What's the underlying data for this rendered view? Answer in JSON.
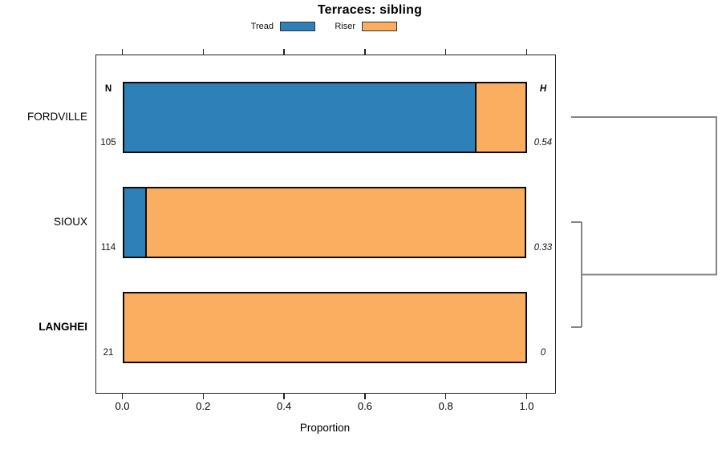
{
  "chart_data": {
    "type": "bar",
    "orientation": "horizontal-stacked",
    "title": "Terraces: sibling",
    "xlabel": "Proportion",
    "xlim": [
      0,
      1
    ],
    "x_tick_labels": [
      "0.0",
      "0.2",
      "0.4",
      "0.6",
      "0.8",
      "1.0"
    ],
    "x_tick_values": [
      0,
      0.2,
      0.4,
      0.6,
      0.8,
      1.0
    ],
    "grid": false,
    "legend": {
      "position": "top",
      "entries": [
        {
          "key": "tread",
          "label": "Tread",
          "color": "#2E80B8"
        },
        {
          "key": "riser",
          "label": "Riser",
          "color": "#FBAD60"
        }
      ]
    },
    "columns": {
      "n_header": "N",
      "h_header": "H"
    },
    "series_order": [
      "tread",
      "riser"
    ],
    "rows": [
      {
        "label": "FORDVILLE",
        "bold": false,
        "n": "105",
        "h": "0.54",
        "values": {
          "tread": 0.875,
          "riser": 0.125
        }
      },
      {
        "label": "SIOUX",
        "bold": false,
        "n": "114",
        "h": "0.33",
        "values": {
          "tread": 0.061,
          "riser": 0.939
        }
      },
      {
        "label": "LANGHEI",
        "bold": true,
        "n": "21",
        "h": "0",
        "values": {
          "tread": 0,
          "riser": 1.0
        }
      }
    ],
    "dendrogram": {
      "line_color": "#848484",
      "merges": [
        {
          "members": [
            "SIOUX",
            "LANGHEI"
          ],
          "h": 0.33
        },
        {
          "members": [
            "FORDVILLE",
            "SIOUX+LANGHEI"
          ],
          "h": 0.54
        }
      ]
    }
  }
}
